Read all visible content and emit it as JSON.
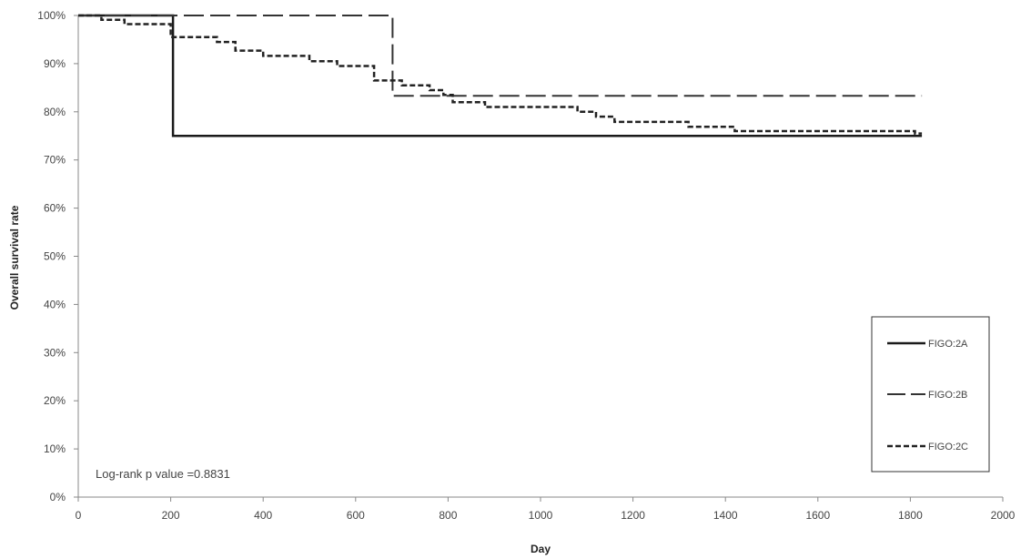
{
  "chart_data": {
    "type": "line",
    "xlabel": "Day",
    "ylabel": "Overall survival rate",
    "xlim": [
      0,
      2000
    ],
    "ylim": [
      0,
      100
    ],
    "x_ticks": [
      "0",
      "200",
      "400",
      "600",
      "800",
      "1000",
      "1200",
      "1400",
      "1600",
      "1800",
      "2000"
    ],
    "y_ticks": [
      "0%",
      "10%",
      "20%",
      "30%",
      "40%",
      "50%",
      "60%",
      "70%",
      "80%",
      "90%",
      "100%"
    ],
    "grid": false,
    "legend_position": "right",
    "annotation": "Log-rank p value =0.8831",
    "series": [
      {
        "name": "FIGO:2A",
        "style": "solid",
        "color": "#1a1a1a",
        "x": [
          0,
          205,
          205,
          1825
        ],
        "y": [
          100,
          100,
          75,
          75
        ]
      },
      {
        "name": "FIGO:2B",
        "style": "long-dash",
        "color": "#333333",
        "x": [
          0,
          680,
          680,
          1825
        ],
        "y": [
          100,
          100,
          83.3,
          83.3
        ]
      },
      {
        "name": "FIGO:2C",
        "style": "short-dash",
        "color": "#222222",
        "x": [
          0,
          50,
          50,
          100,
          100,
          200,
          200,
          300,
          300,
          340,
          340,
          400,
          400,
          500,
          500,
          560,
          560,
          640,
          640,
          700,
          700,
          760,
          760,
          790,
          790,
          810,
          810,
          880,
          880,
          1080,
          1080,
          1120,
          1120,
          1160,
          1160,
          1320,
          1320,
          1420,
          1420,
          1810,
          1810,
          1825
        ],
        "y": [
          100,
          100,
          99.1,
          99.1,
          98.2,
          98.2,
          95.5,
          95.5,
          94.5,
          94.5,
          92.7,
          92.7,
          91.6,
          91.6,
          90.5,
          90.5,
          89.5,
          89.5,
          86.5,
          86.5,
          85.5,
          85.5,
          84.5,
          84.5,
          83.5,
          83.5,
          82.0,
          82.0,
          81.0,
          81.0,
          80.0,
          80.0,
          79.0,
          79.0,
          77.9,
          77.9,
          76.9,
          76.9,
          76.0,
          76.0,
          75.5,
          75.5
        ]
      }
    ]
  }
}
